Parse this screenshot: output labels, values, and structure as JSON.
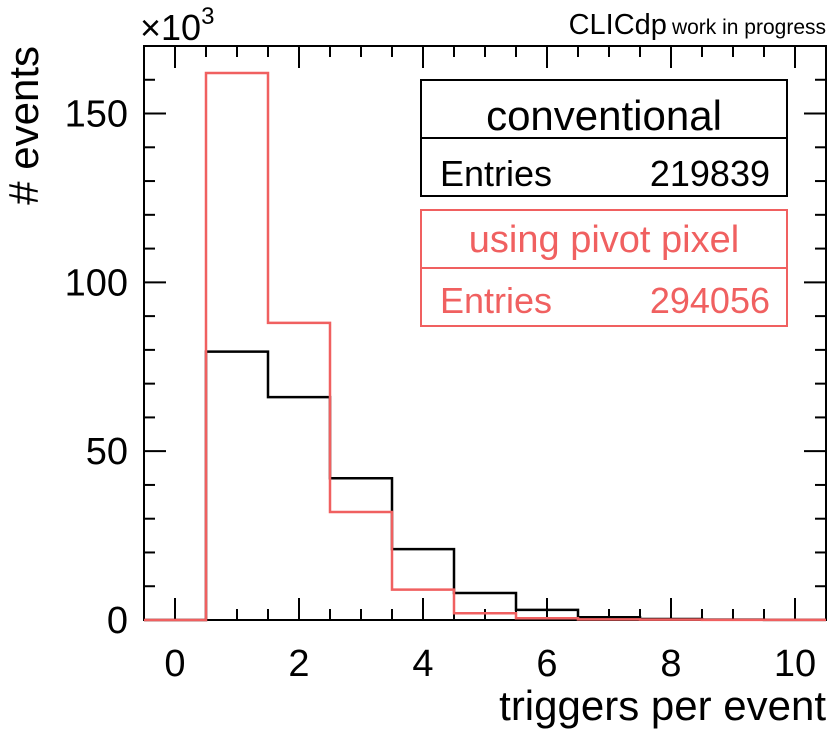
{
  "chart_data": {
    "type": "histogram",
    "title_main": "CLICdp",
    "title_sub": "work in progress",
    "xlabel": "triggers per event",
    "ylabel": "# events",
    "y_multiplier": "×10",
    "y_multiplier_exp": "3",
    "xlim": [
      -0.5,
      10.5
    ],
    "ylim": [
      0,
      170
    ],
    "x_ticks": [
      0,
      2,
      4,
      6,
      8,
      10
    ],
    "x_tick_labels": [
      "0",
      "2",
      "4",
      "6",
      "8",
      "10"
    ],
    "y_ticks": [
      0,
      50,
      100,
      150
    ],
    "y_tick_labels": [
      "0",
      "50",
      "100",
      "150"
    ],
    "bin_edges": [
      -0.5,
      0.5,
      1.5,
      2.5,
      3.5,
      4.5,
      5.5,
      6.5,
      7.5,
      8.5,
      9.5,
      10.5
    ],
    "series": [
      {
        "name": "conventional",
        "color": "#000000",
        "entries_label": "Entries",
        "entries": "219839",
        "values": [
          0,
          79.5,
          66,
          42,
          21,
          8,
          3,
          0.8,
          0.3,
          0.1,
          0.05
        ]
      },
      {
        "name": "using pivot pixel",
        "color": "#f06060",
        "entries_label": "Entries",
        "entries": "294056",
        "values": [
          0,
          162,
          88,
          32,
          9,
          2,
          0.5,
          0.2,
          0.1,
          0.05,
          0.02
        ]
      }
    ]
  }
}
